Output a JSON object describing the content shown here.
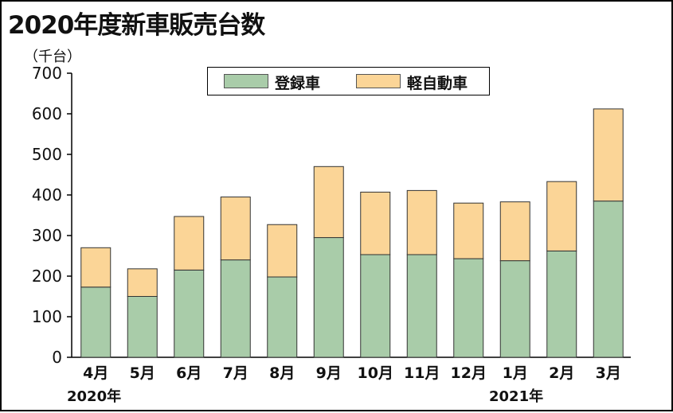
{
  "title": "2020年度新車販売台数",
  "unit_label": "（千台）",
  "year_labels": {
    "start": "2020年",
    "end": "2021年"
  },
  "colors": {
    "registered": "#a9cca9",
    "kei": "#fbd597"
  },
  "chart_data": {
    "type": "bar",
    "stacked": true,
    "title": "2020年度新車販売台数",
    "ylabel": "（千台）",
    "ylim": [
      0,
      700
    ],
    "yticks": [
      0,
      100,
      200,
      300,
      400,
      500,
      600,
      700
    ],
    "categories": [
      "4月",
      "5月",
      "6月",
      "7月",
      "8月",
      "9月",
      "10月",
      "11月",
      "12月",
      "1月",
      "2月",
      "3月"
    ],
    "series": [
      {
        "name": "登録車",
        "values": [
          173,
          150,
          215,
          240,
          198,
          295,
          253,
          253,
          243,
          238,
          262,
          385
        ]
      },
      {
        "name": "軽自動車",
        "values": [
          97,
          68,
          132,
          155,
          129,
          175,
          154,
          158,
          137,
          145,
          171,
          227
        ]
      }
    ],
    "legend": "top"
  }
}
